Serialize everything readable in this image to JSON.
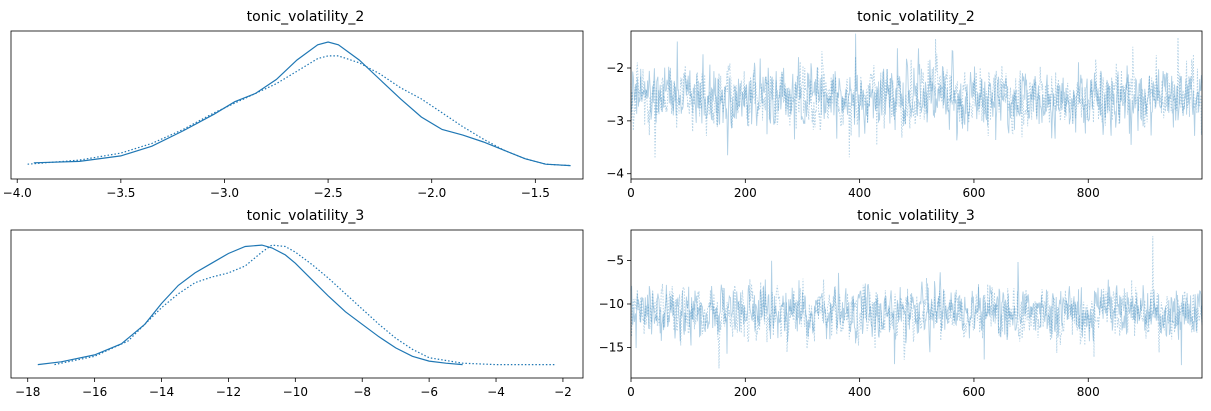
{
  "chart_data": [
    {
      "type": "line",
      "kind": "kde",
      "title": "tonic_volatility_2",
      "xlabel": "",
      "ylabel": "",
      "xlim": [
        -4.03,
        -1.27
      ],
      "xticks": [
        -4.0,
        -3.5,
        -3.0,
        -2.5,
        -2.0,
        -1.5
      ],
      "xtick_labels": [
        "−4.0",
        "−3.5",
        "−3.0",
        "−2.5",
        "−2.0",
        "−1.5"
      ],
      "yticks_visible": false,
      "color": "#1f77b4",
      "series": [
        {
          "style": "solid",
          "x": [
            -3.92,
            -3.7,
            -3.5,
            -3.35,
            -3.2,
            -3.05,
            -2.95,
            -2.85,
            -2.75,
            -2.65,
            -2.55,
            -2.5,
            -2.45,
            -2.35,
            -2.25,
            -2.15,
            -2.05,
            -1.95,
            -1.85,
            -1.75,
            -1.65,
            -1.55,
            -1.45,
            -1.33
          ],
          "y": [
            0.03,
            0.04,
            0.08,
            0.15,
            0.26,
            0.38,
            0.47,
            0.53,
            0.63,
            0.77,
            0.88,
            0.9,
            0.88,
            0.77,
            0.63,
            0.49,
            0.36,
            0.27,
            0.23,
            0.18,
            0.12,
            0.06,
            0.02,
            0.01
          ]
        },
        {
          "style": "dotted",
          "x": [
            -3.95,
            -3.7,
            -3.5,
            -3.35,
            -3.2,
            -3.05,
            -2.95,
            -2.85,
            -2.75,
            -2.65,
            -2.55,
            -2.5,
            -2.45,
            -2.35,
            -2.25,
            -2.15,
            -2.05,
            -1.95,
            -1.85,
            -1.75,
            -1.65,
            -1.55,
            -1.45,
            -1.33
          ],
          "y": [
            0.02,
            0.05,
            0.1,
            0.17,
            0.27,
            0.39,
            0.46,
            0.53,
            0.6,
            0.69,
            0.78,
            0.8,
            0.8,
            0.75,
            0.67,
            0.57,
            0.49,
            0.39,
            0.29,
            0.2,
            0.12,
            0.06,
            0.02,
            0.01
          ]
        }
      ]
    },
    {
      "type": "line",
      "kind": "trace",
      "title": "tonic_volatility_2",
      "xlabel": "",
      "ylabel": "",
      "xlim": [
        0,
        999
      ],
      "ylim": [
        -4.1,
        -1.3
      ],
      "xticks": [
        0,
        200,
        400,
        600,
        800
      ],
      "xtick_labels": [
        "0",
        "200",
        "400",
        "600",
        "800"
      ],
      "yticks": [
        -4,
        -3,
        -2
      ],
      "ytick_labels": [
        "−4",
        "−3",
        "−2"
      ],
      "color": "#1f77b4",
      "opacity": 0.35,
      "draws": 1000,
      "chains": 2,
      "series_stats": {
        "center": -2.55,
        "spread": 0.42,
        "min": -3.9,
        "max": -1.35
      }
    },
    {
      "type": "line",
      "kind": "kde",
      "title": "tonic_volatility_3",
      "xlabel": "",
      "ylabel": "",
      "xlim": [
        -18.5,
        -1.4
      ],
      "xticks": [
        -18,
        -16,
        -14,
        -12,
        -10,
        -8,
        -6,
        -4,
        -2
      ],
      "xtick_labels": [
        "−18",
        "−16",
        "−14",
        "−12",
        "−10",
        "−8",
        "−6",
        "−4",
        "−2"
      ],
      "yticks_visible": false,
      "color": "#1f77b4",
      "series": [
        {
          "style": "solid",
          "x": [
            -17.7,
            -17,
            -16,
            -15.2,
            -14.5,
            -14,
            -13.5,
            -13,
            -12.5,
            -12,
            -11.5,
            -11,
            -10.7,
            -10.3,
            -10,
            -9.5,
            -9,
            -8.5,
            -8,
            -7.5,
            -7,
            -6.5,
            -6,
            -5.5,
            -5
          ],
          "y": [
            0.01,
            0.03,
            0.08,
            0.16,
            0.3,
            0.45,
            0.58,
            0.67,
            0.74,
            0.81,
            0.86,
            0.87,
            0.85,
            0.8,
            0.74,
            0.62,
            0.5,
            0.39,
            0.3,
            0.21,
            0.13,
            0.07,
            0.035,
            0.02,
            0.01
          ]
        },
        {
          "style": "dotted",
          "x": [
            -17.2,
            -16,
            -15,
            -14.5,
            -14,
            -13.5,
            -13,
            -12.5,
            -12,
            -11.5,
            -11,
            -10.7,
            -10.3,
            -10,
            -9.5,
            -9,
            -8.5,
            -8,
            -7.5,
            -7,
            -6.5,
            -6,
            -5,
            -4,
            -2.2
          ],
          "y": [
            0.01,
            0.07,
            0.18,
            0.3,
            0.42,
            0.52,
            0.6,
            0.64,
            0.67,
            0.72,
            0.82,
            0.87,
            0.86,
            0.82,
            0.73,
            0.63,
            0.52,
            0.41,
            0.3,
            0.2,
            0.12,
            0.06,
            0.02,
            0.01,
            0.01
          ]
        }
      ]
    },
    {
      "type": "line",
      "kind": "trace",
      "title": "tonic_volatility_3",
      "xlabel": "",
      "ylabel": "",
      "xlim": [
        0,
        999
      ],
      "ylim": [
        -18.5,
        -1.5
      ],
      "xticks": [
        0,
        200,
        400,
        600,
        800
      ],
      "xtick_labels": [
        "0",
        "200",
        "400",
        "600",
        "800"
      ],
      "yticks": [
        -15,
        -10,
        -5
      ],
      "ytick_labels": [
        "−15",
        "−10",
        "−5"
      ],
      "color": "#1f77b4",
      "opacity": 0.35,
      "draws": 1000,
      "chains": 2,
      "series_stats": {
        "center": -11.0,
        "spread": 2.1,
        "min": -17.8,
        "max": -2.2
      }
    }
  ]
}
